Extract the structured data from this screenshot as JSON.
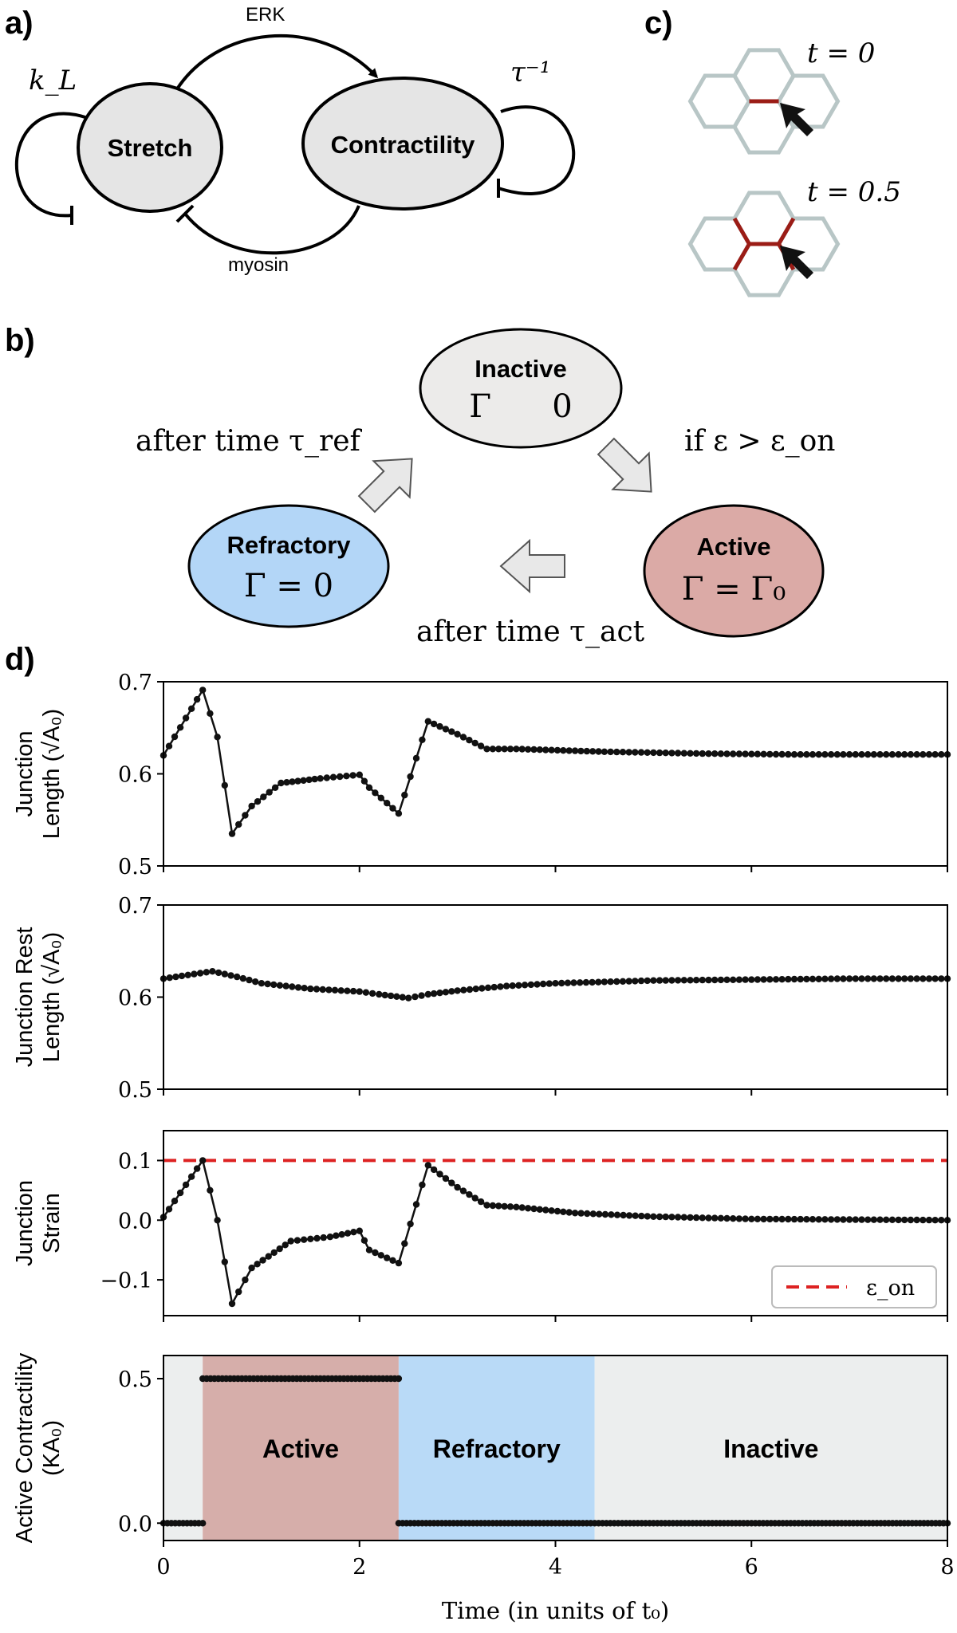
{
  "panel_a": {
    "label": "a)",
    "nodes": {
      "stretch": "Stretch",
      "contractility": "Contractility"
    },
    "edges": {
      "erk": "ERK",
      "myosin": "myosin"
    },
    "self_loops": {
      "left": "k_L",
      "right": "τ⁻¹"
    }
  },
  "panel_b": {
    "label": "b)",
    "states": {
      "inactive": {
        "name": "Inactive",
        "expr": "Γ      0",
        "color": "#ecebea"
      },
      "active": {
        "name": "Active",
        "expr": "Γ = Γ₀",
        "color": "#dbaaa6"
      },
      "refractory": {
        "name": "Refractory",
        "expr": "Γ = 0",
        "color": "#b3d6f7"
      }
    },
    "transitions": {
      "inactive_to_active": "if ε > ε_on",
      "active_to_refractory": "after time τ_act",
      "refractory_to_inactive": "after time τ_ref"
    }
  },
  "panel_c": {
    "label": "c)",
    "times": [
      "t = 0",
      "t = 0.5"
    ],
    "edge_color": "#9b1c16",
    "cell_color": "#b8c6c6"
  },
  "panel_d": {
    "label": "d)"
  },
  "chart_data": [
    {
      "type": "scatter",
      "title": "",
      "ylabel": "Junction Length (√A₀)",
      "ylabel_lines": [
        "Junction",
        "Length (√A₀)"
      ],
      "xlim": [
        0,
        8
      ],
      "ylim": [
        0.5,
        0.7
      ],
      "yticks": [
        "0.5",
        "0.6",
        "0.7"
      ],
      "marker_color": "#111111",
      "connected": true,
      "x": [
        0,
        0.4,
        0.55,
        0.7,
        0.9,
        1.2,
        1.6,
        2.0,
        2.1,
        2.4,
        2.7,
        3.0,
        3.3,
        3.6,
        4.5,
        5.5,
        6.5,
        8.0
      ],
      "y": [
        0.62,
        0.691,
        0.64,
        0.535,
        0.565,
        0.59,
        0.595,
        0.599,
        0.585,
        0.557,
        0.657,
        0.643,
        0.627,
        0.627,
        0.624,
        0.622,
        0.621,
        0.621
      ]
    },
    {
      "type": "scatter",
      "title": "",
      "ylabel": "Junction Rest Length (√A₀)",
      "ylabel_lines": [
        "Junction Rest",
        "Length (√A₀)"
      ],
      "xlim": [
        0,
        8
      ],
      "ylim": [
        0.5,
        0.7
      ],
      "yticks": [
        "0.5",
        "0.6",
        "0.7"
      ],
      "marker_color": "#111111",
      "connected": false,
      "x": [
        0,
        0.25,
        0.5,
        0.75,
        1.0,
        1.5,
        2.0,
        2.2,
        2.5,
        2.7,
        3.0,
        3.5,
        4.0,
        5.0,
        6.0,
        7.0,
        8.0
      ],
      "y": [
        0.62,
        0.624,
        0.628,
        0.622,
        0.615,
        0.609,
        0.606,
        0.603,
        0.599,
        0.603,
        0.607,
        0.612,
        0.615,
        0.618,
        0.619,
        0.62,
        0.62
      ]
    },
    {
      "type": "scatter",
      "title": "",
      "ylabel": "Junction Strain",
      "ylabel_lines": [
        "Junction",
        "Strain"
      ],
      "xlim": [
        0,
        8
      ],
      "ylim": [
        -0.16,
        0.15
      ],
      "yticks": [
        "−0.1",
        "0.0",
        "0.1"
      ],
      "ytick_values": [
        -0.1,
        0.0,
        0.1
      ],
      "marker_color": "#111111",
      "connected": true,
      "x": [
        0,
        0.4,
        0.55,
        0.7,
        0.9,
        1.3,
        1.7,
        2.0,
        2.1,
        2.4,
        2.7,
        3.0,
        3.3,
        3.6,
        4.2,
        5.0,
        6.0,
        7.0,
        8.0
      ],
      "y": [
        0.005,
        0.1,
        0.0,
        -0.14,
        -0.08,
        -0.035,
        -0.028,
        -0.018,
        -0.05,
        -0.072,
        0.092,
        0.055,
        0.025,
        0.022,
        0.012,
        0.006,
        0.002,
        0.001,
        0.0
      ],
      "threshold": {
        "value": 0.1,
        "color": "#dd2222",
        "label": "ε_on"
      },
      "legend_placement": "bottom-right"
    },
    {
      "type": "scatter",
      "title": "",
      "ylabel": "Active Contractility (KA₀)",
      "ylabel_lines": [
        "Active Contractility",
        "(KA₀)"
      ],
      "xlabel": "Time (in units of t₀)",
      "xlim": [
        0,
        8
      ],
      "ylim": [
        -0.06,
        0.58
      ],
      "yticks": [
        "0.0",
        "0.5"
      ],
      "ytick_values": [
        0.0,
        0.5
      ],
      "xticks": [
        "0",
        "2",
        "4",
        "6",
        "8"
      ],
      "xtick_values": [
        0,
        2,
        4,
        6,
        8
      ],
      "marker_color": "#111111",
      "connected": false,
      "segments": [
        {
          "x_start": 0.0,
          "x_end": 0.4,
          "y": 0.0
        },
        {
          "x_start": 0.4,
          "x_end": 2.4,
          "y": 0.5
        },
        {
          "x_start": 2.4,
          "x_end": 8.0,
          "y": 0.0
        }
      ],
      "bands": [
        {
          "x_start": 0.0,
          "x_end": 0.4,
          "label": "",
          "color": "#eceeee"
        },
        {
          "x_start": 0.4,
          "x_end": 2.4,
          "label": "Active",
          "color": "#d6aeaa"
        },
        {
          "x_start": 2.4,
          "x_end": 4.4,
          "label": "Refractory",
          "color": "#b9daf7"
        },
        {
          "x_start": 4.4,
          "x_end": 8.0,
          "label": "Inactive",
          "color": "#eceeee"
        }
      ]
    }
  ]
}
